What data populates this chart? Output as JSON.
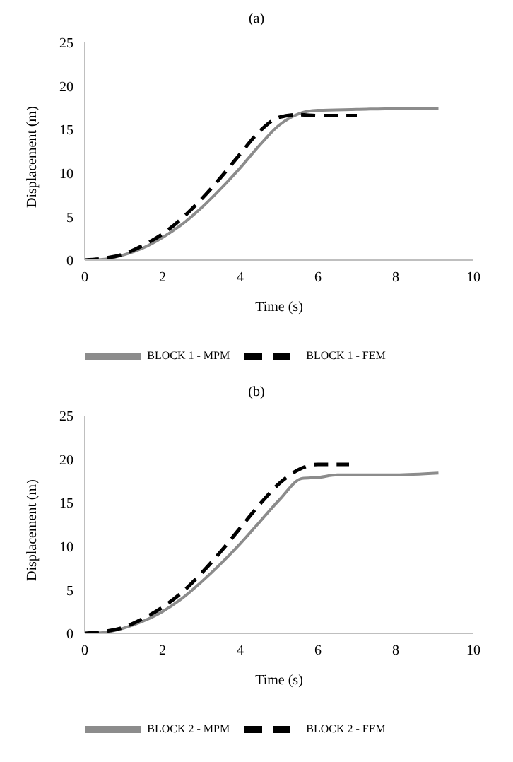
{
  "chart_data": [
    {
      "type": "line",
      "title": "(a)",
      "xlabel": "Time (s)",
      "ylabel": "Displacement (m)",
      "xlim": [
        0,
        10
      ],
      "ylim": [
        0,
        25
      ],
      "xticks": [
        0,
        2,
        4,
        6,
        8,
        10
      ],
      "yticks": [
        0,
        5,
        10,
        15,
        20,
        25
      ],
      "legend": "bottom",
      "marker": "none",
      "series": [
        {
          "name": "BLOCK 1 - MPM",
          "color": "#8c8c8c",
          "line_style": "solid",
          "x": [
            0,
            0.5,
            1,
            1.5,
            2,
            2.5,
            3,
            3.5,
            4,
            4.5,
            5,
            5.5,
            6,
            7,
            8,
            9.1
          ],
          "values": [
            0,
            0.1,
            0.6,
            1.4,
            2.6,
            4.1,
            6,
            8.2,
            10.6,
            13.2,
            15.5,
            16.8,
            17.2,
            17.3,
            17.4,
            17.4
          ]
        },
        {
          "name": "BLOCK 1 - FEM",
          "color": "#000000",
          "line_style": "dashed",
          "x": [
            0,
            0.5,
            1,
            1.5,
            2,
            2.5,
            3,
            3.5,
            4,
            4.5,
            5,
            5.5,
            6,
            7
          ],
          "values": [
            0,
            0.2,
            0.7,
            1.7,
            3,
            4.8,
            7,
            9.5,
            12.2,
            14.8,
            16.4,
            16.7,
            16.6,
            16.6
          ]
        }
      ]
    },
    {
      "type": "line",
      "title": "(b)",
      "xlabel": "Time (s)",
      "ylabel": "Displacement (m)",
      "xlim": [
        0,
        10
      ],
      "ylim": [
        0,
        25
      ],
      "xticks": [
        0,
        2,
        4,
        6,
        8,
        10
      ],
      "yticks": [
        0,
        5,
        10,
        15,
        20,
        25
      ],
      "legend": "bottom",
      "marker": "none",
      "series": [
        {
          "name": "BLOCK 2 - MPM",
          "color": "#8c8c8c",
          "line_style": "solid",
          "x": [
            0,
            0.5,
            1,
            1.5,
            2,
            2.5,
            3,
            3.5,
            4,
            4.5,
            5,
            5.6,
            6,
            6.5,
            8,
            9.1
          ],
          "values": [
            0,
            0.1,
            0.6,
            1.4,
            2.5,
            4,
            5.9,
            8,
            10.3,
            12.8,
            15.3,
            17.8,
            17.9,
            18.2,
            18.2,
            18.4
          ]
        },
        {
          "name": "BLOCK 2 - FEM",
          "color": "#000000",
          "line_style": "dashed",
          "x": [
            0,
            0.5,
            1,
            1.5,
            2,
            2.5,
            3,
            3.5,
            4,
            4.5,
            5,
            5.5,
            6,
            6.8
          ],
          "values": [
            0,
            0.2,
            0.7,
            1.7,
            3,
            4.7,
            6.9,
            9.4,
            12.1,
            14.8,
            17.2,
            18.8,
            19.4,
            19.4
          ]
        }
      ]
    }
  ]
}
